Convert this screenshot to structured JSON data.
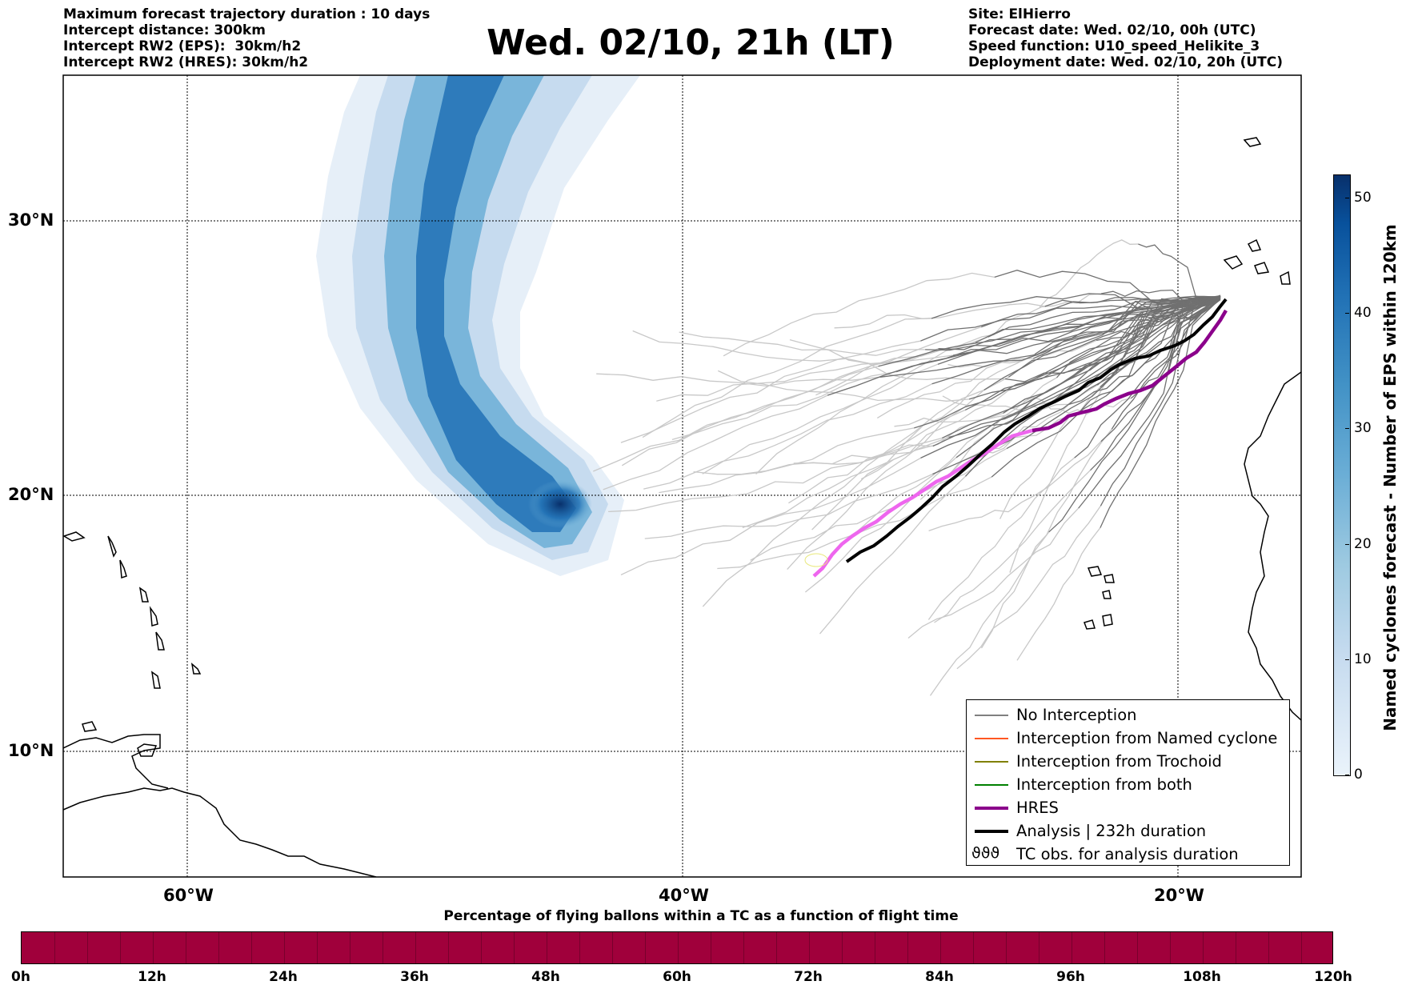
{
  "header_left": [
    "Maximum forecast trajectory duration : 10 days",
    "Intercept distance: 300km",
    "Intercept RW2 (EPS):  30km/h2",
    "Intercept RW2 (HRES): 30km/h2"
  ],
  "title": "Wed. 02/10, 21h (LT)",
  "header_right": [
    "Site: ElHierro",
    "Forecast date: Wed. 02/10, 00h (UTC)",
    "Speed function: U10_speed_Helikite_3",
    "Deployment date: Wed. 02/10, 20h (UTC)"
  ],
  "map": {
    "lat_labels": [
      "30°N",
      "20°N",
      "10°N"
    ],
    "lon_labels": [
      "60°W",
      "40°W",
      "20°W"
    ],
    "lat_values": [
      30,
      20,
      10
    ],
    "lon_values": [
      -60,
      -40,
      -20
    ],
    "extent": {
      "lon_min": -65,
      "lon_max": -15,
      "lat_min": 5.4,
      "lat_max": 35.3
    }
  },
  "legend": [
    {
      "label": "No Interception",
      "color": "#808080",
      "style": "thin"
    },
    {
      "label": "Interception from Named cyclone",
      "color": "#ff5722",
      "style": "thin"
    },
    {
      "label": "Interception from Trochoid",
      "color": "#808000",
      "style": "thin"
    },
    {
      "label": "Interception from both",
      "color": "#008000",
      "style": "thin"
    },
    {
      "label": "HRES",
      "color": "#8b008b",
      "style": "thick"
    },
    {
      "label": "Analysis | 232h duration",
      "color": "#000000",
      "style": "thick"
    },
    {
      "label": "TC obs. for analysis duration",
      "color": "#000000",
      "style": "symbol"
    }
  ],
  "colorbar": {
    "label": "Named cyclones forecast - Number of EPS within 120km",
    "ticks": [
      "0",
      "10",
      "20",
      "30",
      "40",
      "50"
    ],
    "max": 52
  },
  "pct_bar": {
    "title": "Percentage of flying ballons within a TC as a function of flight time",
    "labels": [
      "0h",
      "12h",
      "24h",
      "36h",
      "48h",
      "60h",
      "72h",
      "84h",
      "96h",
      "108h",
      "120h"
    ],
    "color": "#a0003b"
  },
  "colors": {
    "hres": "#8b008b",
    "hres_light": "#ee66ee",
    "analysis": "#000000",
    "no_interception": "#808080",
    "eps_light": "#c8c8c8"
  }
}
